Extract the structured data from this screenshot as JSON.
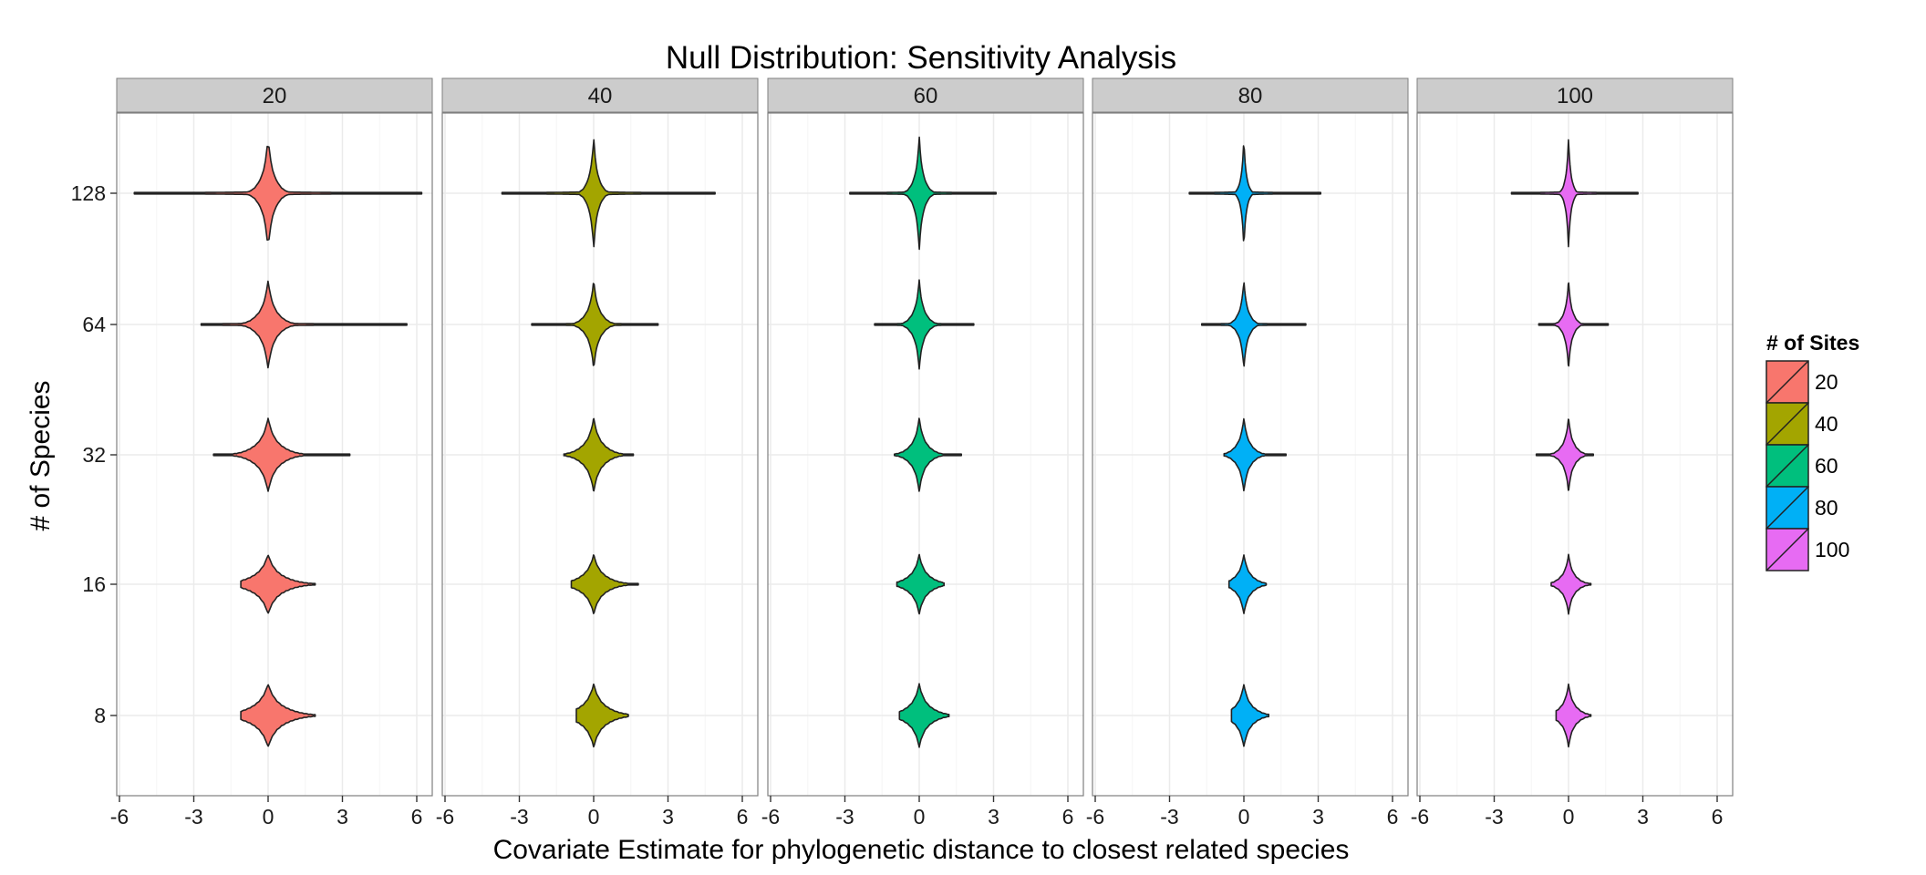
{
  "chart_data": {
    "type": "violin",
    "title": "Null Distribution: Sensitivity Analysis",
    "xlabel": "Covariate Estimate for phylogenetic distance to closest related species",
    "ylabel": "# of Species",
    "xlim": [
      -6,
      6
    ],
    "x_ticks": [
      "-6",
      "-3",
      "0",
      "3",
      "6"
    ],
    "y_categories": [
      "8",
      "16",
      "32",
      "64",
      "128"
    ],
    "grid": true,
    "legend": {
      "title": "# of Sites",
      "position": "right",
      "entries": [
        "20",
        "40",
        "60",
        "80",
        "100"
      ]
    },
    "panels": [
      {
        "label": "20",
        "color": "#F8766D",
        "violins": [
          {
            "species": "128",
            "min": -5.4,
            "max": 6.2,
            "median": 0,
            "peak_spread": 0.35
          },
          {
            "species": "64",
            "min": -2.7,
            "max": 5.6,
            "median": 0,
            "peak_spread": 0.45
          },
          {
            "species": "32",
            "min": -2.2,
            "max": 3.3,
            "median": 0,
            "peak_spread": 0.6
          },
          {
            "species": "16",
            "min": -1.1,
            "max": 1.9,
            "median": 0,
            "peak_spread": 0.75
          },
          {
            "species": "8",
            "min": -1.1,
            "max": 1.9,
            "median": 0,
            "peak_spread": 0.8
          }
        ]
      },
      {
        "label": "40",
        "color": "#A3A500",
        "violins": [
          {
            "species": "128",
            "min": -3.7,
            "max": 4.9,
            "median": 0,
            "peak_spread": 0.25
          },
          {
            "species": "64",
            "min": -2.5,
            "max": 2.6,
            "median": 0,
            "peak_spread": 0.35
          },
          {
            "species": "32",
            "min": -1.2,
            "max": 1.6,
            "median": 0,
            "peak_spread": 0.5
          },
          {
            "species": "16",
            "min": -0.9,
            "max": 1.8,
            "median": 0,
            "peak_spread": 0.6
          },
          {
            "species": "8",
            "min": -0.7,
            "max": 1.4,
            "median": 0,
            "peak_spread": 0.65
          }
        ]
      },
      {
        "label": "60",
        "color": "#00BF7D",
        "violins": [
          {
            "species": "128",
            "min": -2.8,
            "max": 3.1,
            "median": 0,
            "peak_spread": 0.25
          },
          {
            "species": "64",
            "min": -1.8,
            "max": 2.2,
            "median": 0,
            "peak_spread": 0.3
          },
          {
            "species": "32",
            "min": -1.0,
            "max": 1.7,
            "median": 0,
            "peak_spread": 0.4
          },
          {
            "species": "16",
            "min": -0.9,
            "max": 1.0,
            "median": 0,
            "peak_spread": 0.5
          },
          {
            "species": "8",
            "min": -0.8,
            "max": 1.2,
            "median": 0,
            "peak_spread": 0.55
          }
        ]
      },
      {
        "label": "80",
        "color": "#00B0F6",
        "violins": [
          {
            "species": "128",
            "min": -2.2,
            "max": 3.1,
            "median": 0,
            "peak_spread": 0.15
          },
          {
            "species": "64",
            "min": -1.7,
            "max": 2.5,
            "median": 0,
            "peak_spread": 0.25
          },
          {
            "species": "32",
            "min": -0.8,
            "max": 1.7,
            "median": 0,
            "peak_spread": 0.35
          },
          {
            "species": "16",
            "min": -0.6,
            "max": 0.9,
            "median": 0,
            "peak_spread": 0.4
          },
          {
            "species": "8",
            "min": -0.5,
            "max": 1.0,
            "median": 0,
            "peak_spread": 0.45
          }
        ]
      },
      {
        "label": "100",
        "color": "#E76BF3",
        "violins": [
          {
            "species": "128",
            "min": -2.3,
            "max": 2.8,
            "median": 0,
            "peak_spread": 0.15
          },
          {
            "species": "64",
            "min": -1.2,
            "max": 1.6,
            "median": 0,
            "peak_spread": 0.22
          },
          {
            "species": "32",
            "min": -1.3,
            "max": 1.0,
            "median": 0,
            "peak_spread": 0.3
          },
          {
            "species": "16",
            "min": -0.7,
            "max": 0.9,
            "median": 0,
            "peak_spread": 0.35
          },
          {
            "species": "8",
            "min": -0.5,
            "max": 0.9,
            "median": 0,
            "peak_spread": 0.38
          }
        ]
      }
    ]
  }
}
